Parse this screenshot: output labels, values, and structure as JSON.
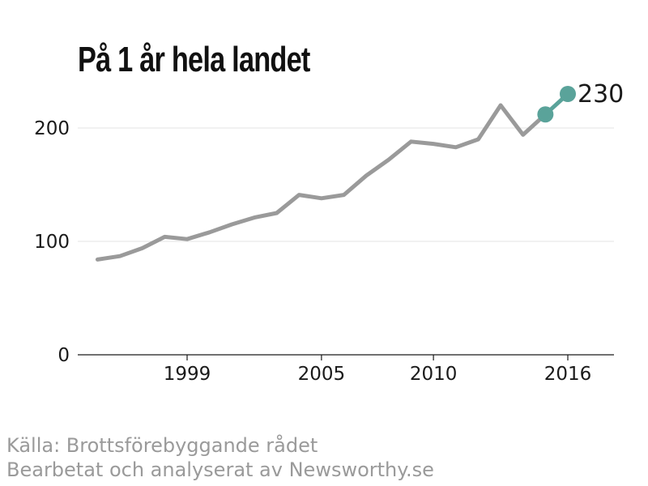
{
  "title": "På 1 år hela landet",
  "source": {
    "line1": "Källa: Brottsförebyggande rådet",
    "line2": "Bearbetat och analyserat av Newsworthy.se"
  },
  "chart_data": {
    "type": "line",
    "title": "På 1 år hela landet",
    "xlabel": "",
    "ylabel": "",
    "x": [
      1995,
      1996,
      1997,
      1998,
      1999,
      2000,
      2001,
      2002,
      2003,
      2004,
      2005,
      2006,
      2007,
      2008,
      2009,
      2010,
      2011,
      2012,
      2013,
      2014,
      2015,
      2016
    ],
    "series": [
      {
        "values": [
          84,
          87,
          94,
          104,
          102,
          108,
          115,
          121,
          125,
          141,
          138,
          141,
          158,
          172,
          188,
          186,
          183,
          190,
          220,
          194,
          212,
          230
        ]
      }
    ],
    "highlight": {
      "from_index": 20,
      "to_index": 21,
      "end_label": "230",
      "color": "#5aa39a"
    },
    "line_color": "#9a9a9a",
    "xlim": [
      1994,
      2017
    ],
    "ylim": [
      0,
      250
    ],
    "xticks": [
      1999,
      2005,
      2010,
      2016
    ],
    "xtick_labels": [
      "1999",
      "2005",
      "2010",
      "2016"
    ],
    "yticks": [
      0,
      100,
      200
    ],
    "ytick_labels": [
      "0",
      "100",
      "200"
    ],
    "grid": true,
    "legend": "none"
  }
}
